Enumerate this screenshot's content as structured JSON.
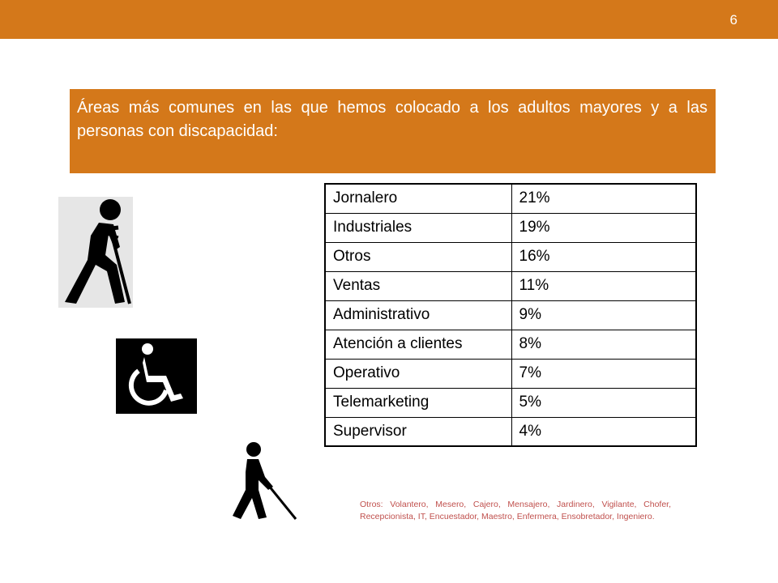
{
  "page_number": "6",
  "title": "Áreas más comunes en las que hemos colocado a los adultos mayores y a las personas con discapacidad:",
  "table": {
    "rows": [
      {
        "area": "Jornalero",
        "pct": "21%"
      },
      {
        "area": "Industriales",
        "pct": "19%"
      },
      {
        "area": "Otros",
        "pct": "16%"
      },
      {
        "area": "Ventas",
        "pct": "11%"
      },
      {
        "area": "Administrativo",
        "pct": "9%"
      },
      {
        "area": "Atención a clientes",
        "pct": "8%"
      },
      {
        "area": "Operativo",
        "pct": "7%"
      },
      {
        "area": "Telemarketing",
        "pct": "5%"
      },
      {
        "area": "Supervisor",
        "pct": "4%"
      }
    ]
  },
  "footnote": "Otros: Volantero, Mesero, Cajero, Mensajero, Jardinero, Vigilante, Chofer, Recepcionista, IT, Encuestador, Maestro, Enfermera, Ensobretador, Ingeniero.",
  "icons": {
    "crutch": "person-with-crutch-icon",
    "wheelchair": "wheelchair-icon",
    "cane": "blind-person-with-cane-icon"
  },
  "colors": {
    "accent": "#d4781a",
    "footnote": "#c0504d"
  }
}
